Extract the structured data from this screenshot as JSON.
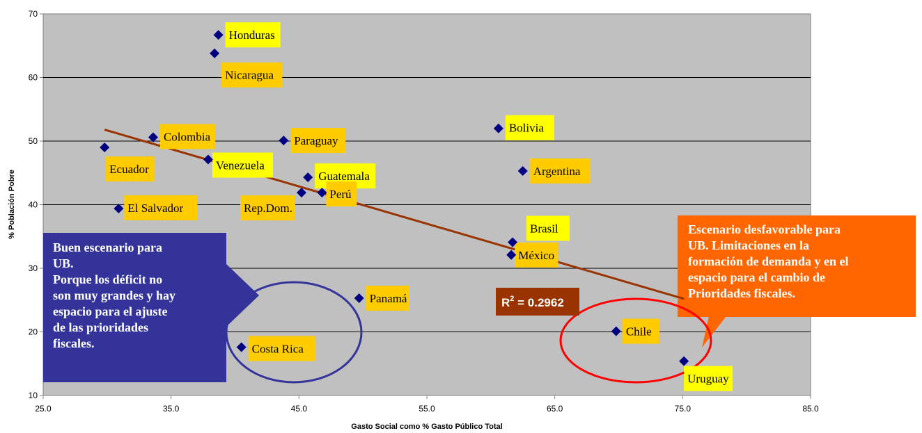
{
  "chart_data": {
    "type": "scatter",
    "title": "",
    "xlabel": "Gasto Social como % Gasto Público Total",
    "ylabel": "% Población Pobre",
    "xlim": [
      25,
      85
    ],
    "ylim": [
      10,
      70
    ],
    "x_ticks": [
      "25.0",
      "35.0",
      "45.0",
      "55.0",
      "65.0",
      "75.0",
      "85.0"
    ],
    "y_ticks": [
      "10",
      "20",
      "30",
      "40",
      "50",
      "60",
      "70"
    ],
    "grid": "horizontal",
    "plot_background": "#c0c0c0",
    "marker_color": "#000080",
    "points": [
      {
        "label": "Honduras",
        "x": 38.7,
        "y": 66.7,
        "label_bg": "#ffff00"
      },
      {
        "label": "Nicaragua",
        "x": 38.4,
        "y": 63.8,
        "label_bg": "#ffcc00"
      },
      {
        "label": "Bolivia",
        "x": 60.6,
        "y": 52.0,
        "label_bg": "#ffff00"
      },
      {
        "label": "Colombia",
        "x": 33.6,
        "y": 50.6,
        "label_bg": "#ffcc00"
      },
      {
        "label": "Paraguay",
        "x": 43.8,
        "y": 50.1,
        "label_bg": "#ffcc00"
      },
      {
        "label": "Ecuador",
        "x": 29.8,
        "y": 49.0,
        "label_bg": "#ffcc00"
      },
      {
        "label": "Venezuela",
        "x": 37.9,
        "y": 47.1,
        "label_bg": "#ffff00"
      },
      {
        "label": "Argentina",
        "x": 62.5,
        "y": 45.3,
        "label_bg": "#ffcc00"
      },
      {
        "label": "Guatemala",
        "x": 45.7,
        "y": 44.3,
        "label_bg": "#ffff00"
      },
      {
        "label": "Rep.Dom.",
        "x": 45.2,
        "y": 41.9,
        "label_bg": "#ffcc00"
      },
      {
        "label": "Perú",
        "x": 46.8,
        "y": 41.9,
        "label_bg": "#ffcc00"
      },
      {
        "label": "El Salvador",
        "x": 30.9,
        "y": 39.4,
        "label_bg": "#ffcc00"
      },
      {
        "label": "Brasil",
        "x": 61.7,
        "y": 34.1,
        "label_bg": "#ffff00"
      },
      {
        "label": "México",
        "x": 61.6,
        "y": 32.1,
        "label_bg": "#ffcc00"
      },
      {
        "label": "Panamá",
        "x": 49.7,
        "y": 25.3,
        "label_bg": "#ffcc00"
      },
      {
        "label": "Chile",
        "x": 69.8,
        "y": 20.1,
        "label_bg": "#ffcc00"
      },
      {
        "label": "Costa Rica",
        "x": 40.5,
        "y": 17.6,
        "label_bg": "#ffcc00"
      },
      {
        "label": "Uruguay",
        "x": 75.1,
        "y": 15.4,
        "label_bg": "#ffff00"
      }
    ],
    "trendline": {
      "x": [
        29.8,
        75.1
      ],
      "y": [
        51.8,
        25.2
      ],
      "color": "#993300"
    },
    "r_squared_label": {
      "prefix": "R",
      "superscript": "2",
      "value": " = 0.2962",
      "bg": "#993300"
    },
    "callouts": [
      {
        "lines": [
          "Buen escenario para",
          "UB.",
          "Porque los déficit no",
          "son muy grandes y hay",
          "espacio para el ajuste",
          "de las prioridades",
          "fiscales."
        ],
        "bg": "#333399",
        "ellipse_color": "#333399"
      },
      {
        "lines": [
          "Escenario desfavorable para",
          "UB. Limitaciones en la",
          "formación de demanda y en el",
          "espacio para el cambio de",
          "Prioridades fiscales."
        ],
        "bg": "#ff6600",
        "ellipse_color": "#ff0000"
      }
    ]
  }
}
